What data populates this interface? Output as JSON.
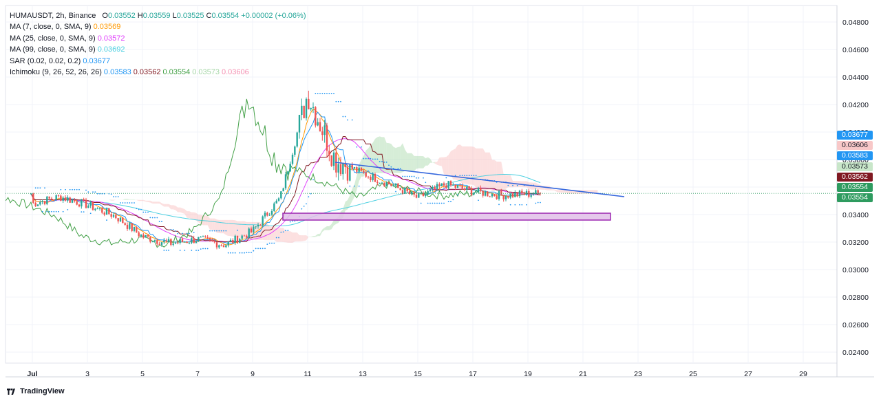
{
  "header": {
    "symbol_line": {
      "symbol": "HUMAUSDT, 2h, Binance",
      "open_label": "O",
      "open": "0.03552",
      "high_label": "H",
      "high": "0.03559",
      "low_label": "L",
      "low": "0.03525",
      "close_label": "C",
      "close": "0.03554",
      "change": "+0.00002 (+0.06%)"
    },
    "indicators": [
      {
        "label": "MA (7, close, 0, SMA, 9)",
        "values": [
          "0.03569"
        ],
        "colors": [
          "#ff9800"
        ]
      },
      {
        "label": "MA (25, close, 0, SMA, 9)",
        "values": [
          "0.03572"
        ],
        "colors": [
          "#e040fb"
        ]
      },
      {
        "label": "MA (99, close, 0, SMA, 9)",
        "values": [
          "0.03692"
        ],
        "colors": [
          "#4dd0e1"
        ]
      },
      {
        "label": "SAR (0.02, 0.02, 0.2)",
        "values": [
          "0.03677"
        ],
        "colors": [
          "#2196f3"
        ]
      },
      {
        "label": "Ichimoku (9, 26, 52, 26, 26)",
        "values": [
          "0.03583",
          "0.03562",
          "0.03554",
          "0.03573",
          "0.03606"
        ],
        "colors": [
          "#2196f3",
          "#801922",
          "#43a047",
          "#a5d6a7",
          "#f48fb1"
        ]
      }
    ]
  },
  "price_tags": [
    {
      "value": "0.03677",
      "bg": "#2196f3",
      "fg": "#ffffff"
    },
    {
      "value": "0.03606",
      "bg": "#f8c8c8",
      "fg": "#131722"
    },
    {
      "value": "0.03583",
      "bg": "#2196f3",
      "fg": "#ffffff"
    },
    {
      "value": "0.03573",
      "bg": "#c8e6c9",
      "fg": "#131722"
    },
    {
      "value": "0.03562",
      "bg": "#801922",
      "fg": "#ffffff"
    },
    {
      "value": "0.03554",
      "bg": "#2e9b5f",
      "fg": "#ffffff"
    },
    {
      "value": "0.03554",
      "bg": "#2e9b5f",
      "fg": "#ffffff"
    }
  ],
  "footer": {
    "brand": "TradingView"
  },
  "chart_data": {
    "type": "line",
    "title": "HUMAUSDT, 2h, Binance",
    "x_ticks": [
      "Jul",
      "3",
      "5",
      "7",
      "9",
      "11",
      "13",
      "15",
      "17",
      "19",
      "21",
      "23",
      "25",
      "27",
      "29"
    ],
    "y_ticks": [
      "0.04800",
      "0.04600",
      "0.04400",
      "0.04200",
      "0.04000",
      "0.03800",
      "0.03600",
      "0.03400",
      "0.03200",
      "0.03000",
      "0.02800",
      "0.02600",
      "0.02400"
    ],
    "ylim": [
      0.0232,
      0.0492
    ],
    "grid": true,
    "colors": {
      "up": "#26a69a",
      "down": "#ef5350",
      "ma7": "#ff9800",
      "ma25": "#e040fb",
      "ma99": "#4dd0e1",
      "sar": "#2196f3",
      "tenkan": "#2196f3",
      "kijun": "#801922",
      "lagging": "#43a047",
      "cloud_green": "#a5d6a7",
      "cloud_red": "#f8bbbb",
      "trendline": "#3366dd",
      "zone": "#9c27b0"
    },
    "price_path": [
      [
        "Jul",
        0.0348
      ],
      [
        "2",
        0.0353
      ],
      [
        "3",
        0.0347
      ],
      [
        "4",
        0.0339
      ],
      [
        "5",
        0.0324
      ],
      [
        "6",
        0.0319
      ],
      [
        "7",
        0.0322
      ],
      [
        "8",
        0.0318
      ],
      [
        "9",
        0.0328
      ],
      [
        "10",
        0.0352
      ],
      [
        "11",
        0.0428
      ],
      [
        "12",
        0.038
      ],
      [
        "13",
        0.037
      ],
      [
        "14",
        0.0362
      ],
      [
        "15",
        0.0352
      ],
      [
        "16",
        0.0362
      ],
      [
        "17",
        0.0357
      ],
      [
        "18",
        0.0354
      ],
      [
        "19",
        0.0355
      ],
      [
        "19.5",
        0.03554
      ]
    ],
    "candle_range": {
      "high": 0.0456,
      "low": 0.03
    },
    "trendline": {
      "start": [
        "12",
        0.0378
      ],
      "end": [
        "22.5",
        0.0353
      ]
    },
    "support_zone": {
      "x_start": "10.1",
      "x_end": "22",
      "y_low": 0.0336,
      "y_high": 0.0341
    },
    "last_price": 0.03554
  }
}
